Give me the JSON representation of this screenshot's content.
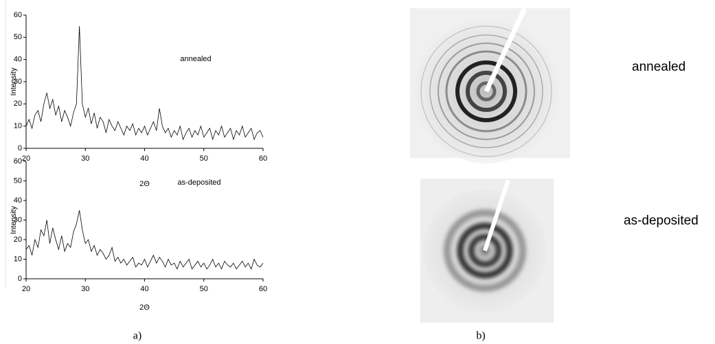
{
  "chart_data": [
    {
      "type": "line",
      "annotation": "annealed",
      "xlabel": "2Θ",
      "ylabel": "Intensity",
      "xlim": [
        20,
        60
      ],
      "ylim": [
        0,
        60
      ],
      "xticks": [
        20,
        30,
        40,
        50,
        60
      ],
      "yticks": [
        0,
        10,
        20,
        30,
        40,
        50,
        60
      ],
      "x": [
        20,
        20.5,
        21,
        21.5,
        22,
        22.5,
        23,
        23.5,
        24,
        24.5,
        25,
        25.5,
        26,
        26.5,
        27,
        27.5,
        28,
        28.5,
        29,
        29.5,
        30,
        30.5,
        31,
        31.5,
        32,
        32.5,
        33,
        33.5,
        34,
        34.5,
        35,
        35.5,
        36,
        36.5,
        37,
        37.5,
        38,
        38.5,
        39,
        39.5,
        40,
        40.5,
        41,
        41.5,
        42,
        42.5,
        43,
        43.5,
        44,
        44.5,
        45,
        45.5,
        46,
        46.5,
        47,
        47.5,
        48,
        48.5,
        49,
        49.5,
        50,
        50.5,
        51,
        51.5,
        52,
        52.5,
        53,
        53.5,
        54,
        54.5,
        55,
        55.5,
        56,
        56.5,
        57,
        57.5,
        58,
        58.5,
        59,
        59.5,
        60
      ],
      "color": "#000000",
      "values": [
        10,
        13,
        9,
        15,
        17,
        12,
        20,
        25,
        18,
        22,
        15,
        19,
        12,
        17,
        14,
        10,
        16,
        20,
        55,
        20,
        14,
        18,
        11,
        16,
        9,
        14,
        12,
        7,
        13,
        10,
        8,
        12,
        9,
        6,
        10,
        8,
        11,
        6,
        9,
        7,
        10,
        6,
        9,
        12,
        8,
        18,
        10,
        7,
        9,
        5,
        8,
        6,
        10,
        4,
        7,
        9,
        5,
        8,
        6,
        10,
        5,
        7,
        9,
        4,
        8,
        6,
        10,
        5,
        7,
        9,
        4,
        8,
        6,
        10,
        5,
        7,
        9,
        4,
        7,
        8,
        5
      ]
    },
    {
      "type": "line",
      "annotation": "as-deposited",
      "xlabel": "2Θ",
      "ylabel": "Intensity",
      "xlim": [
        20,
        60
      ],
      "ylim": [
        0,
        60
      ],
      "xticks": [
        20,
        30,
        40,
        50,
        60
      ],
      "yticks": [
        0,
        10,
        20,
        30,
        40,
        50,
        60
      ],
      "x": [
        20,
        20.5,
        21,
        21.5,
        22,
        22.5,
        23,
        23.5,
        24,
        24.5,
        25,
        25.5,
        26,
        26.5,
        27,
        27.5,
        28,
        28.5,
        29,
        29.5,
        30,
        30.5,
        31,
        31.5,
        32,
        32.5,
        33,
        33.5,
        34,
        34.5,
        35,
        35.5,
        36,
        36.5,
        37,
        37.5,
        38,
        38.5,
        39,
        39.5,
        40,
        40.5,
        41,
        41.5,
        42,
        42.5,
        43,
        43.5,
        44,
        44.5,
        45,
        45.5,
        46,
        46.5,
        47,
        47.5,
        48,
        48.5,
        49,
        49.5,
        50,
        50.5,
        51,
        51.5,
        52,
        52.5,
        53,
        53.5,
        54,
        54.5,
        55,
        55.5,
        56,
        56.5,
        57,
        57.5,
        58,
        58.5,
        59,
        59.5,
        60
      ],
      "color": "#000000",
      "values": [
        15,
        17,
        12,
        20,
        16,
        25,
        22,
        30,
        18,
        26,
        20,
        15,
        22,
        14,
        18,
        16,
        24,
        28,
        35,
        25,
        18,
        20,
        14,
        17,
        12,
        15,
        13,
        10,
        12,
        16,
        9,
        11,
        8,
        10,
        7,
        9,
        11,
        6,
        8,
        7,
        10,
        6,
        9,
        12,
        8,
        11,
        9,
        6,
        10,
        7,
        8,
        5,
        9,
        6,
        8,
        10,
        5,
        7,
        9,
        6,
        8,
        5,
        7,
        10,
        6,
        8,
        5,
        9,
        7,
        6,
        8,
        5,
        7,
        9,
        6,
        8,
        5,
        10,
        7,
        6,
        8
      ]
    }
  ],
  "panel_labels": [
    "a)",
    "b)"
  ],
  "image_labels": [
    "annealed",
    "as-deposited"
  ]
}
